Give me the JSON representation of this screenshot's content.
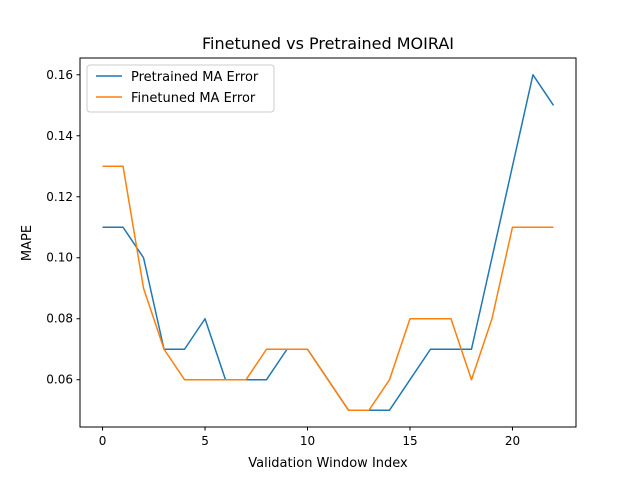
{
  "chart_data": {
    "type": "line",
    "title": "Finetuned vs Pretrained MOIRAI",
    "xlabel": "Validation Window Index",
    "ylabel": "MAPE",
    "xlim": [
      -1.1,
      23.1
    ],
    "ylim": [
      0.0445,
      0.1655
    ],
    "xticks": [
      0,
      5,
      10,
      15,
      20
    ],
    "yticks": [
      0.06,
      0.08,
      0.1,
      0.12,
      0.14,
      0.16
    ],
    "xtick_labels": [
      "0",
      "5",
      "10",
      "15",
      "20"
    ],
    "ytick_labels": [
      "0.06",
      "0.08",
      "0.10",
      "0.12",
      "0.14",
      "0.16"
    ],
    "grid": false,
    "legend_position": "upper-left",
    "x": [
      0,
      1,
      2,
      3,
      4,
      5,
      6,
      7,
      8,
      9,
      10,
      11,
      12,
      13,
      14,
      15,
      16,
      17,
      18,
      19,
      20,
      21,
      22
    ],
    "series": [
      {
        "name": "Pretrained MA Error",
        "color": "#1f77b4",
        "values": [
          0.11,
          0.11,
          0.1,
          0.07,
          0.07,
          0.08,
          0.06,
          0.06,
          0.06,
          0.07,
          0.07,
          0.06,
          0.05,
          0.05,
          0.05,
          0.06,
          0.07,
          0.07,
          0.07,
          0.1,
          0.13,
          0.16,
          0.15
        ]
      },
      {
        "name": "Finetuned MA Error",
        "color": "#ff7f0e",
        "values": [
          0.13,
          0.13,
          0.09,
          0.07,
          0.06,
          0.06,
          0.06,
          0.06,
          0.07,
          0.07,
          0.07,
          0.06,
          0.05,
          0.05,
          0.06,
          0.08,
          0.08,
          0.08,
          0.06,
          0.08,
          0.11,
          0.11,
          0.11
        ]
      }
    ]
  }
}
